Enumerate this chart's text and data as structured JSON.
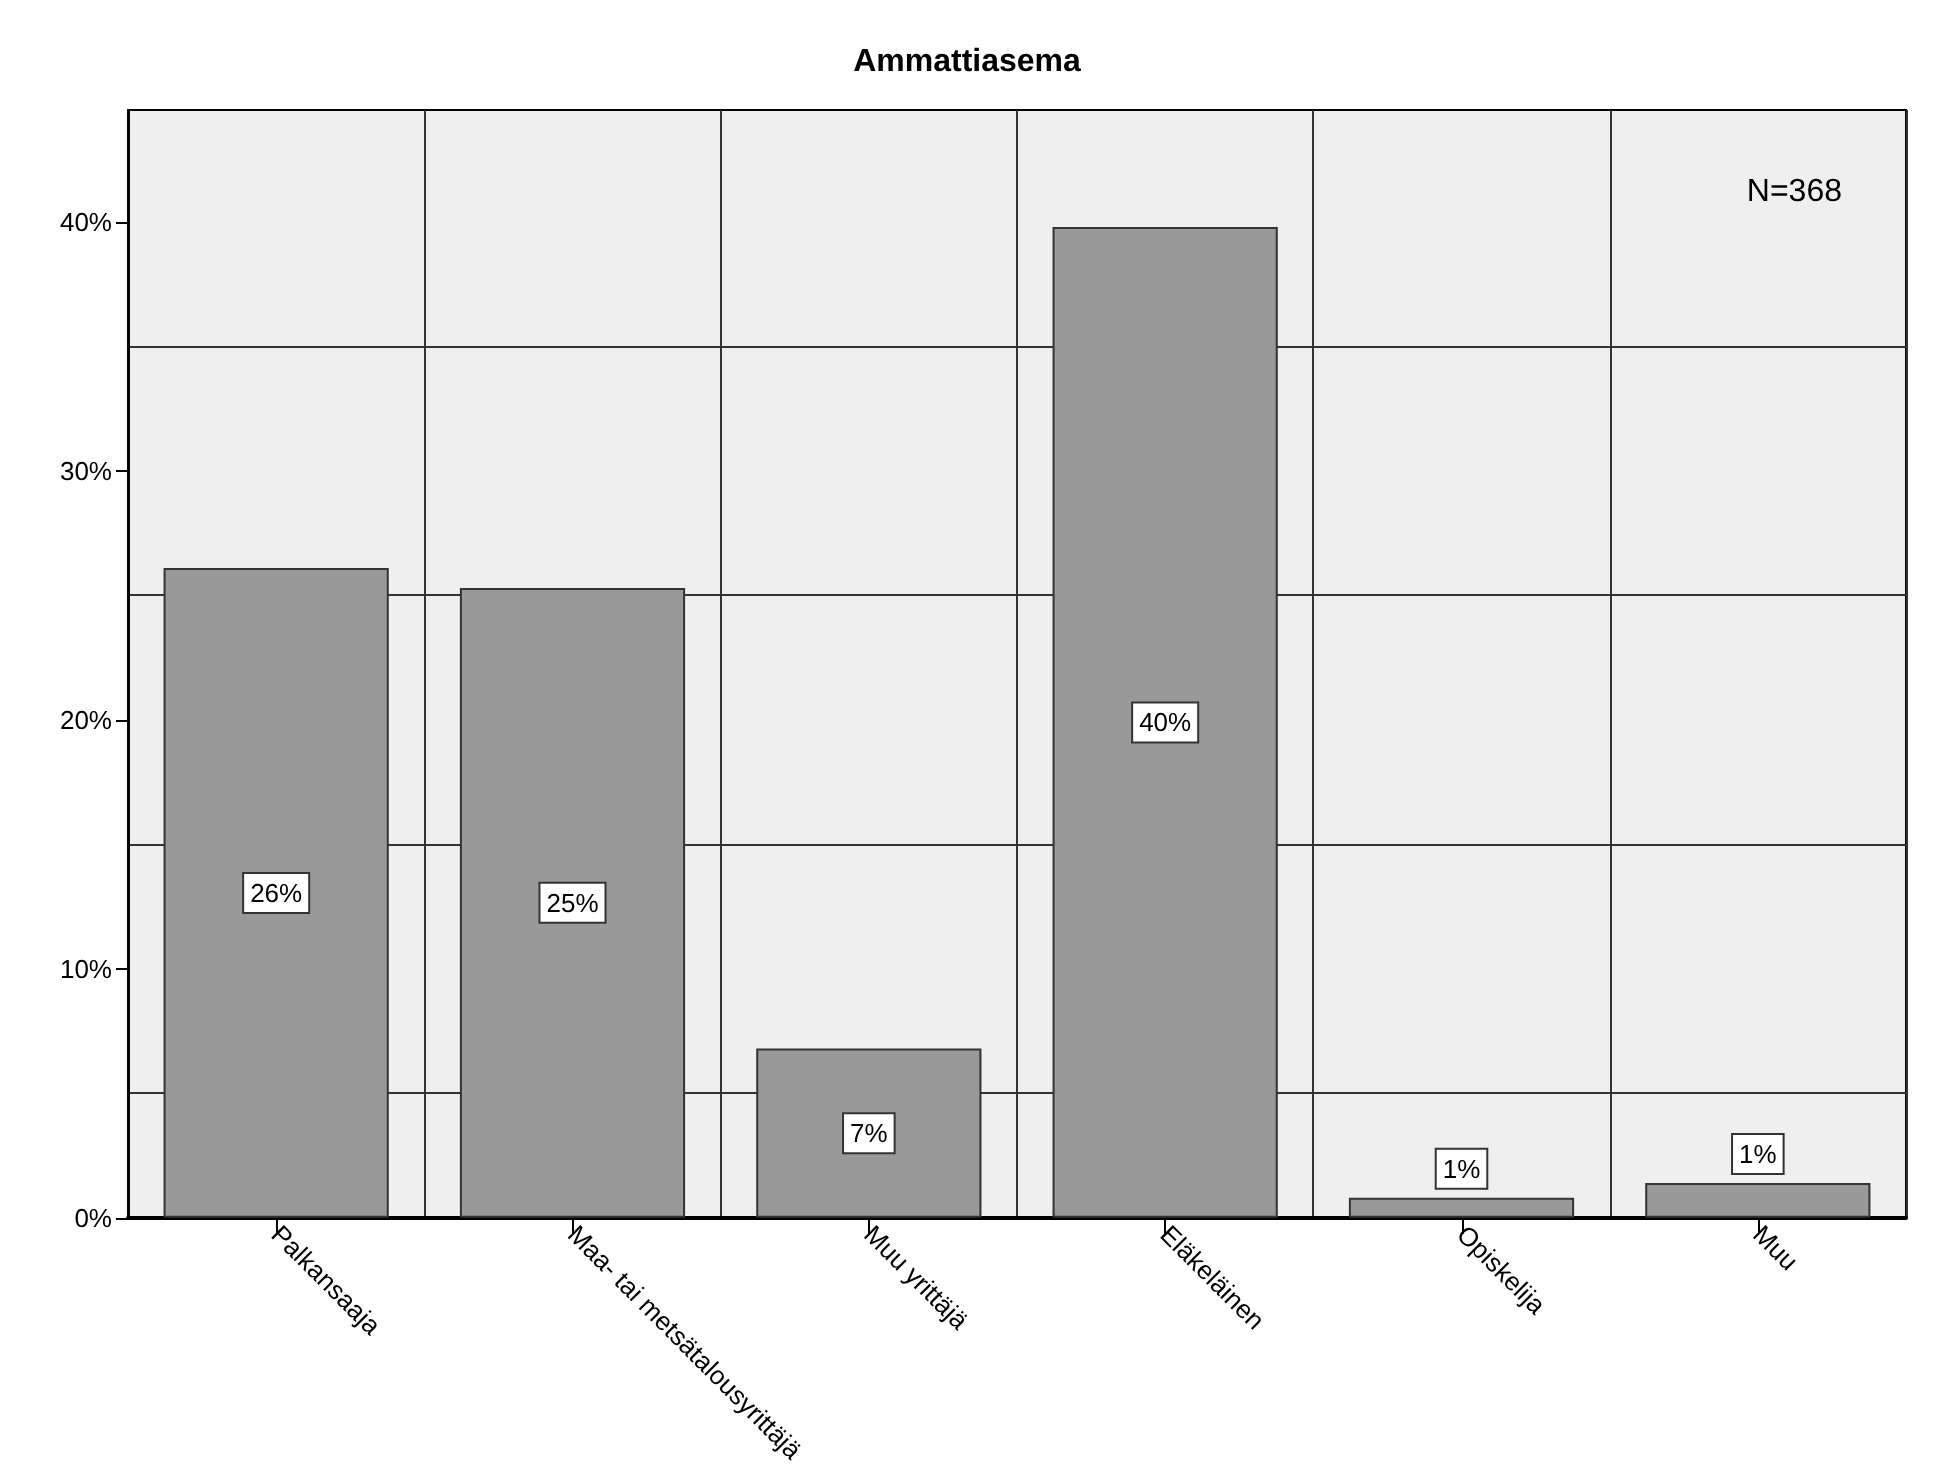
{
  "chart_data": {
    "type": "bar",
    "title": "Ammattiasema",
    "categories": [
      "Palkansaaja",
      "Maa- tai metsätalousyrittäjä",
      "Muu yrittäjä",
      "Eläkeläinen",
      "Opiskelija",
      "Muu"
    ],
    "values": [
      26.1,
      25.3,
      6.8,
      39.8,
      0.8,
      1.4
    ],
    "value_labels": [
      "26%",
      "25%",
      "7%",
      "40%",
      "1%",
      "1%"
    ],
    "color": "#999999",
    "ylim": [
      0,
      44.5
    ],
    "yticks": [
      {
        "value": 0,
        "label": "0%"
      },
      {
        "value": 5,
        "label": null
      },
      {
        "value": 10,
        "label": "10%"
      },
      {
        "value": 15,
        "label": null
      },
      {
        "value": 20,
        "label": "20%"
      },
      {
        "value": 25,
        "label": null
      },
      {
        "value": 30,
        "label": "30%"
      },
      {
        "value": 35,
        "label": null
      },
      {
        "value": 40,
        "label": "40%"
      }
    ],
    "grid": true,
    "annotations": [
      "N=368"
    ]
  }
}
